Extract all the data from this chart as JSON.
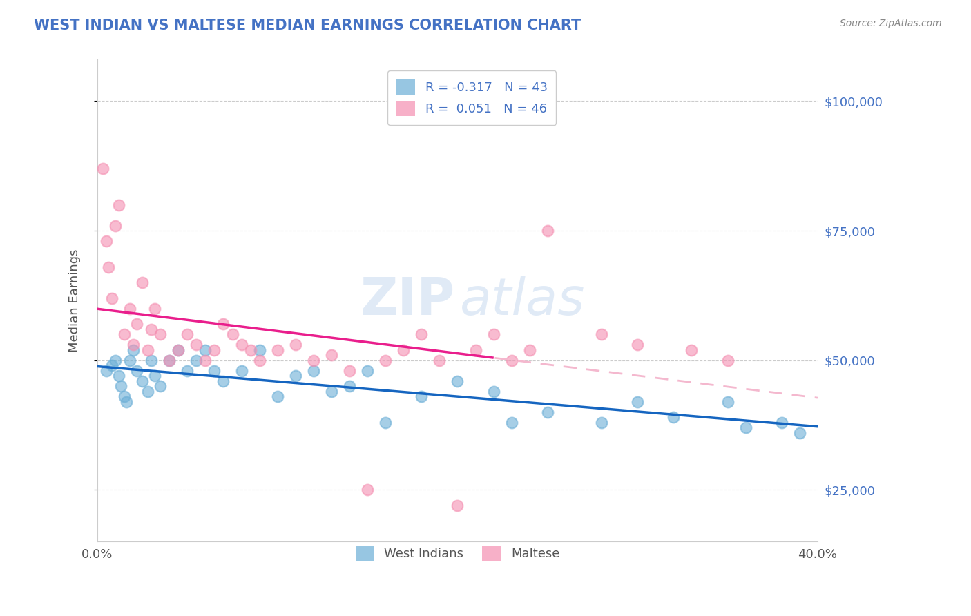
{
  "title": "WEST INDIAN VS MALTESE MEDIAN EARNINGS CORRELATION CHART",
  "source_text": "Source: ZipAtlas.com",
  "ylabel": "Median Earnings",
  "yticks": [
    25000,
    50000,
    75000,
    100000
  ],
  "ytick_labels": [
    "$25,000",
    "$50,000",
    "$75,000",
    "$100,000"
  ],
  "xmin": 0.0,
  "xmax": 40.0,
  "ymin": 15000,
  "ymax": 108000,
  "legend_entry_1": "R = -0.317   N = 43",
  "legend_entry_2": "R =  0.051   N = 46",
  "west_indian_color": "#6baed6",
  "maltese_color": "#f48fb1",
  "west_indian_line_color": "#1565c0",
  "maltese_line_solid_color": "#e91e8c",
  "maltese_line_dash_color": "#f4b8ce",
  "watermark_zip": "ZIP",
  "watermark_atlas": "atlas",
  "background_color": "#ffffff",
  "grid_color": "#cccccc",
  "title_color": "#4472c4",
  "ytick_color": "#4472c4",
  "xtick_color": "#555555",
  "ylabel_color": "#555555",
  "source_color": "#888888",
  "legend_label_color": "#4472c4",
  "bottom_legend_color": "#555555",
  "west_indian_x": [
    0.5,
    0.8,
    1.0,
    1.2,
    1.3,
    1.5,
    1.6,
    1.8,
    2.0,
    2.2,
    2.5,
    2.8,
    3.0,
    3.2,
    3.5,
    4.0,
    4.5,
    5.0,
    5.5,
    6.0,
    6.5,
    7.0,
    8.0,
    9.0,
    10.0,
    11.0,
    12.0,
    13.0,
    14.0,
    15.0,
    16.0,
    18.0,
    20.0,
    22.0,
    23.0,
    25.0,
    28.0,
    30.0,
    32.0,
    35.0,
    36.0,
    38.0,
    39.0
  ],
  "west_indian_y": [
    48000,
    49000,
    50000,
    47000,
    45000,
    43000,
    42000,
    50000,
    52000,
    48000,
    46000,
    44000,
    50000,
    47000,
    45000,
    50000,
    52000,
    48000,
    50000,
    52000,
    48000,
    46000,
    48000,
    52000,
    43000,
    47000,
    48000,
    44000,
    45000,
    48000,
    38000,
    43000,
    46000,
    44000,
    38000,
    40000,
    38000,
    42000,
    39000,
    42000,
    37000,
    38000,
    36000
  ],
  "maltese_x": [
    0.3,
    0.5,
    0.6,
    0.8,
    1.0,
    1.2,
    1.5,
    1.8,
    2.0,
    2.2,
    2.5,
    2.8,
    3.0,
    3.2,
    3.5,
    4.0,
    4.5,
    5.0,
    5.5,
    6.0,
    6.5,
    7.0,
    7.5,
    8.0,
    8.5,
    9.0,
    10.0,
    11.0,
    12.0,
    13.0,
    14.0,
    15.0,
    16.0,
    17.0,
    18.0,
    19.0,
    20.0,
    21.0,
    22.0,
    23.0,
    24.0,
    25.0,
    28.0,
    30.0,
    33.0,
    35.0
  ],
  "maltese_y": [
    87000,
    73000,
    68000,
    62000,
    76000,
    80000,
    55000,
    60000,
    53000,
    57000,
    65000,
    52000,
    56000,
    60000,
    55000,
    50000,
    52000,
    55000,
    53000,
    50000,
    52000,
    57000,
    55000,
    53000,
    52000,
    50000,
    52000,
    53000,
    50000,
    51000,
    48000,
    25000,
    50000,
    52000,
    55000,
    50000,
    22000,
    52000,
    55000,
    50000,
    52000,
    75000,
    55000,
    53000,
    52000,
    50000
  ],
  "maltese_trend_split_x": 22.0
}
